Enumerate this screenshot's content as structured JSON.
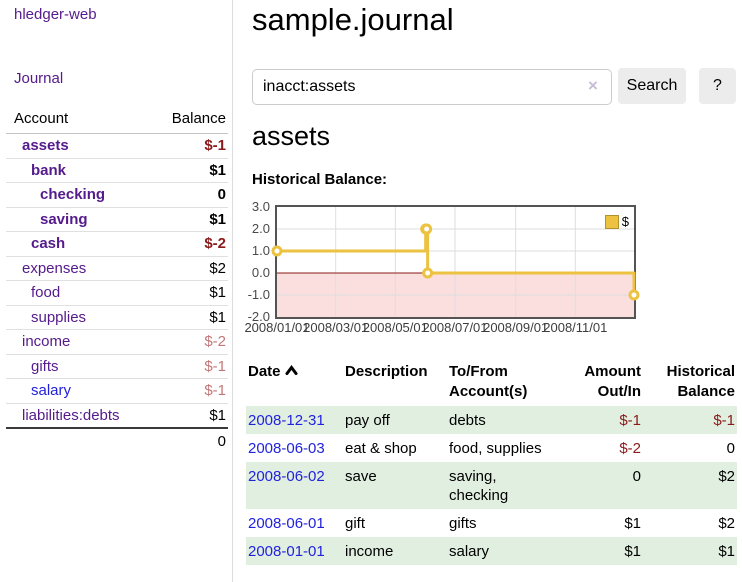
{
  "app": {
    "brand": "hledger-web"
  },
  "sidebar": {
    "nav_journal": "Journal",
    "accounts": {
      "header_account": "Account",
      "header_balance": "Balance",
      "rows": [
        {
          "name": "assets",
          "balance": "$-1"
        },
        {
          "name": "bank",
          "balance": "$1"
        },
        {
          "name": "checking",
          "balance": "0"
        },
        {
          "name": "saving",
          "balance": "$1"
        },
        {
          "name": "cash",
          "balance": "$-2"
        },
        {
          "name": "expenses",
          "balance": "$2"
        },
        {
          "name": "food",
          "balance": "$1"
        },
        {
          "name": "supplies",
          "balance": "$1"
        },
        {
          "name": "income",
          "balance": "$-2"
        },
        {
          "name": "gifts",
          "balance": "$-1"
        },
        {
          "name": "salary",
          "balance": "$-1"
        },
        {
          "name": "liabilities:debts",
          "balance": "$1"
        }
      ],
      "total": "0"
    }
  },
  "header": {
    "title": "sample.journal"
  },
  "search": {
    "value": "inacct:assets",
    "clear_icon": "×",
    "button_label": "Search",
    "help_label": "?"
  },
  "account_page": {
    "heading": "assets",
    "chart_title": "Historical Balance:"
  },
  "chart_data": {
    "type": "line",
    "step": true,
    "title": "Historical Balance:",
    "series": [
      {
        "name": "$",
        "color": "#EDC240",
        "points": [
          {
            "date": "2008/01/01",
            "day": 0,
            "value": 1
          },
          {
            "date": "2008/06/01",
            "day": 152,
            "value": 2
          },
          {
            "date": "2008/06/02",
            "day": 153,
            "value": 2
          },
          {
            "date": "2008/06/03",
            "day": 154,
            "value": 0
          },
          {
            "date": "2008/12/31",
            "day": 365,
            "value": -1
          }
        ]
      }
    ],
    "x_ticks": [
      {
        "label": "2008/01/01",
        "day": 0
      },
      {
        "label": "2008/03/01",
        "day": 60
      },
      {
        "label": "2008/05/01",
        "day": 121
      },
      {
        "label": "2008/07/01",
        "day": 182
      },
      {
        "label": "2008/09/01",
        "day": 244
      },
      {
        "label": "2008/11/01",
        "day": 305
      }
    ],
    "y_ticks": [
      "3.0",
      "2.0",
      "1.0",
      "0.0",
      "-1.0",
      "-2.0"
    ],
    "xlim_days": [
      0,
      365
    ],
    "ylim": [
      -2,
      3
    ],
    "grid": true,
    "legend_position": "top-right",
    "colors": {
      "gridline": "#dedede",
      "border": "#545454",
      "zero_line": "#8b1a1a",
      "negative_region": "#fbdfdf",
      "marker_fill": "#ffffff"
    }
  },
  "register": {
    "headers": {
      "date": "Date",
      "description": "Description",
      "to_from": "To/From Account(s)",
      "amount": "Amount Out/In",
      "balance": "Historical Balance"
    },
    "rows": [
      {
        "date": "2008-12-31",
        "description": "pay off",
        "to_from": "debts",
        "amount": "$-1",
        "balance": "$-1"
      },
      {
        "date": "2008-06-03",
        "description": "eat & shop",
        "to_from": "food, supplies",
        "amount": "$-2",
        "balance": "0"
      },
      {
        "date": "2008-06-02",
        "description": "save",
        "to_from": "saving, checking",
        "amount": "0",
        "balance": "$2"
      },
      {
        "date": "2008-06-01",
        "description": "gift",
        "to_from": "gifts",
        "amount": "$1",
        "balance": "$2"
      },
      {
        "date": "2008-01-01",
        "description": "income",
        "to_from": "salary",
        "amount": "$1",
        "balance": "$1"
      }
    ]
  }
}
